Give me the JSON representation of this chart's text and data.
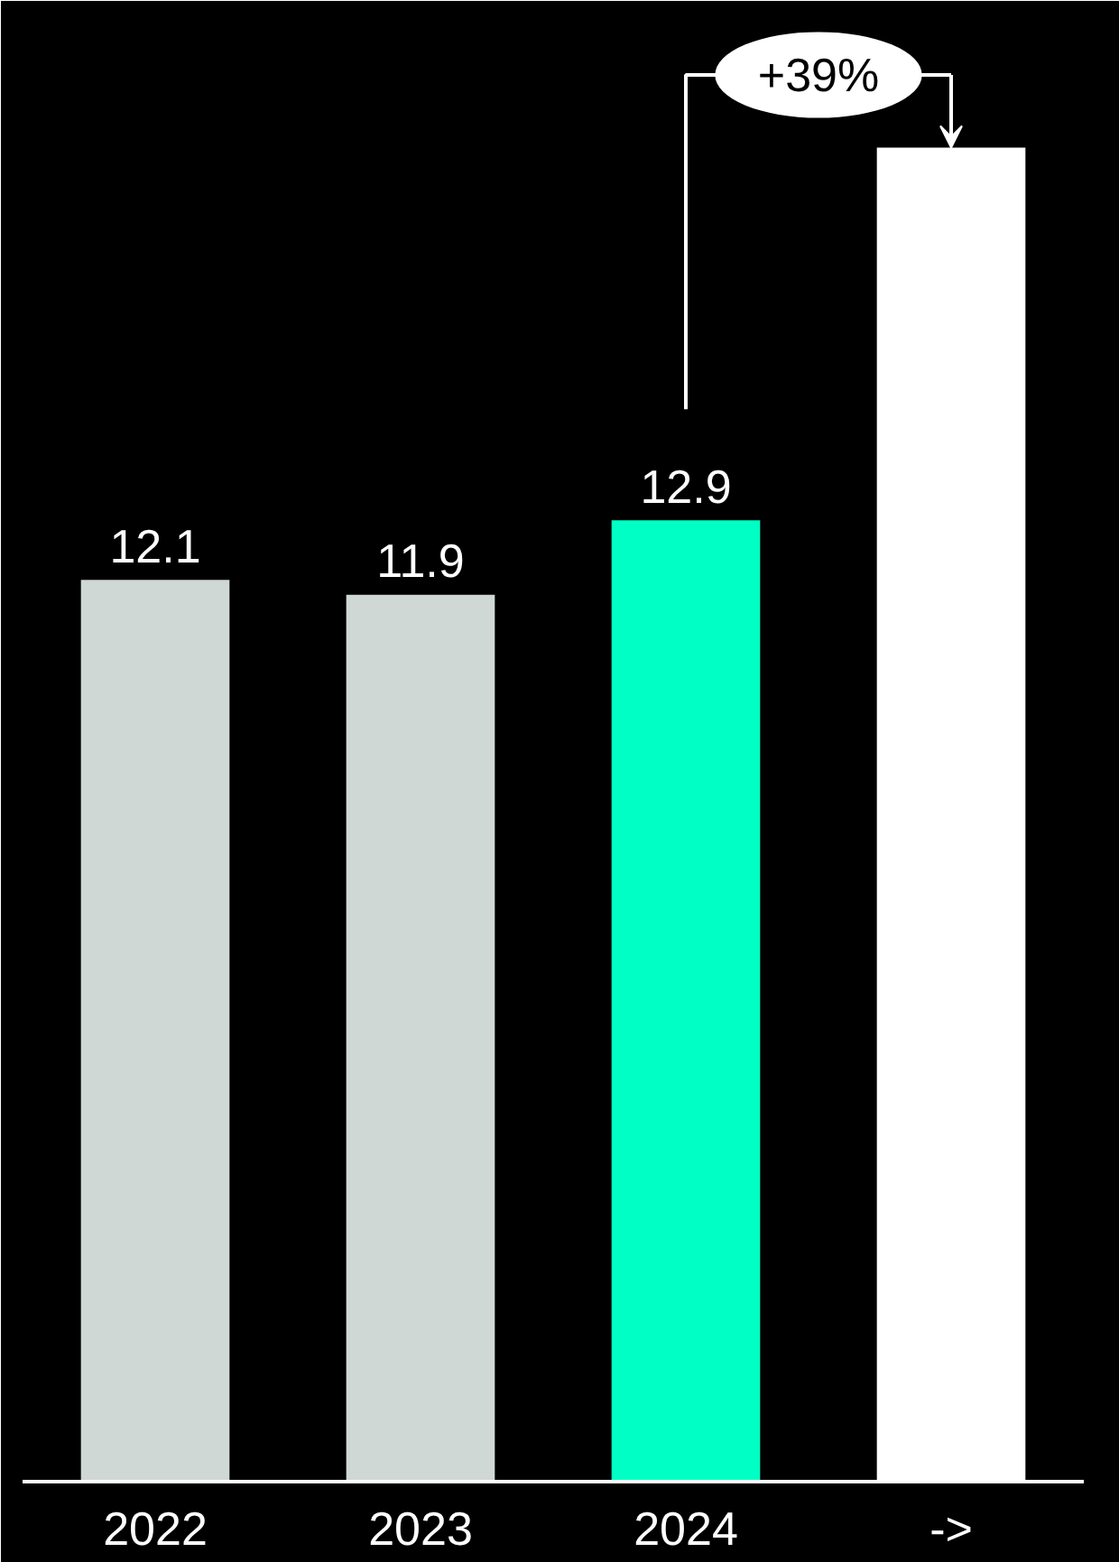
{
  "chart_data": {
    "type": "bar",
    "categories": [
      "2022",
      "2023",
      "2024",
      "->"
    ],
    "values": [
      12.1,
      11.9,
      12.9,
      17.9
    ],
    "colors": [
      "#cfd8d5",
      "#cfd8d5",
      "#00ffc4",
      "#ffffff"
    ],
    "value_labels": [
      "12.1",
      "11.9",
      "12.9",
      null
    ],
    "annotations": [
      "+39%"
    ],
    "grid": false,
    "tick_labels": "x"
  }
}
